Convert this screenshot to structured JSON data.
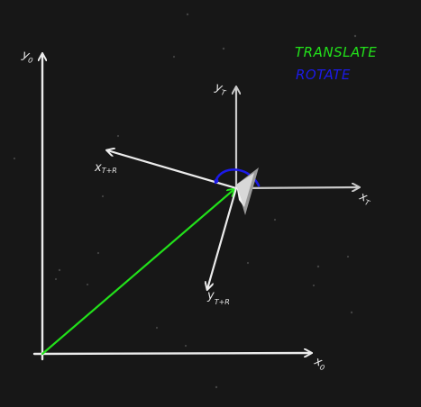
{
  "legend": {
    "translate": {
      "label": "TRANSLATE",
      "color": "#22e11a"
    },
    "rotate": {
      "label": "ROTATE",
      "color": "#1c1ae8"
    }
  },
  "axes": {
    "world_y": {
      "letter": "y",
      "sub": "0"
    },
    "world_x": {
      "letter": "x",
      "sub": "0"
    },
    "translated_y": {
      "letter": "y",
      "sub": "T"
    },
    "translated_x": {
      "letter": "x",
      "sub": "T"
    },
    "rotated_x": {
      "letter": "x",
      "sub": "T+R"
    },
    "rotated_y": {
      "letter": "y",
      "sub": "T+R"
    }
  },
  "colors": {
    "background": "#171717",
    "axis": "#ececec",
    "translated_axis": "#c9c9c9",
    "translation_vector": "#22e11a",
    "rotation_arc": "#1c1ae8"
  }
}
